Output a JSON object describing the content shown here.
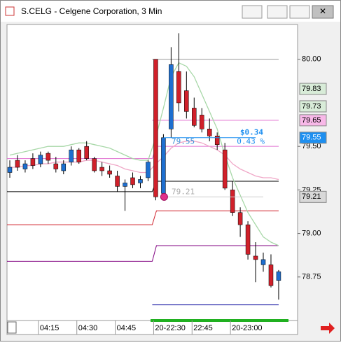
{
  "chart_data": {
    "type": "candlestick",
    "title": "S.CELG - Celgene Corporation, 3 Min",
    "categories": [
      null,
      null,
      null,
      null,
      "04:15",
      null,
      null,
      null,
      null,
      "04:30",
      null,
      null,
      null,
      null,
      "04:45",
      null,
      null,
      null,
      null,
      "20-22:30",
      null,
      null,
      null,
      null,
      "22:45",
      null,
      null,
      null,
      null,
      "20-23:00",
      null,
      null,
      null,
      null,
      null,
      null
    ],
    "open": [
      79.35,
      79.42,
      79.37,
      79.43,
      79.4,
      79.46,
      79.4,
      79.36,
      79.41,
      79.48,
      79.5,
      79.43,
      79.38,
      79.36,
      79.33,
      79.27,
      79.32,
      79.29,
      79.32,
      80.0,
      79.23,
      79.6,
      79.93,
      79.82,
      79.72,
      79.68,
      79.6,
      79.56,
      79.48,
      79.25,
      79.12,
      79.05,
      78.87,
      78.82,
      78.82,
      78.73
    ],
    "high": [
      79.42,
      79.45,
      79.42,
      79.46,
      79.47,
      79.47,
      79.44,
      79.42,
      79.5,
      79.49,
      79.53,
      79.44,
      79.41,
      79.39,
      79.36,
      79.31,
      79.35,
      79.33,
      79.42,
      80.0,
      79.57,
      80.07,
      80.15,
      79.93,
      79.78,
      79.72,
      79.66,
      79.58,
      79.52,
      79.3,
      79.15,
      79.07,
      78.95,
      78.89,
      78.88,
      78.79
    ],
    "low": [
      79.32,
      79.36,
      79.35,
      79.37,
      79.38,
      79.4,
      79.35,
      79.34,
      79.39,
      79.4,
      79.42,
      79.35,
      79.33,
      79.32,
      79.24,
      79.13,
      79.26,
      79.26,
      79.3,
      79.19,
      79.21,
      79.55,
      79.7,
      79.66,
      79.61,
      79.58,
      79.53,
      79.48,
      79.25,
      79.1,
      78.98,
      78.85,
      78.72,
      78.78,
      78.69,
      78.62
    ],
    "close": [
      79.38,
      79.38,
      79.4,
      79.39,
      79.45,
      79.42,
      79.37,
      79.4,
      79.48,
      79.41,
      79.43,
      79.36,
      79.36,
      79.34,
      79.27,
      79.29,
      79.28,
      79.31,
      79.41,
      79.21,
      79.55,
      79.97,
      79.75,
      79.7,
      79.62,
      79.6,
      79.56,
      79.51,
      79.26,
      79.12,
      79.05,
      78.88,
      78.85,
      78.85,
      78.7,
      78.78
    ],
    "up_color": "#1e6fd0",
    "down_color": "#d0202a",
    "series": [
      {
        "color": "#a8d8a8",
        "values": [
          79.45,
          79.46,
          79.47,
          79.48,
          79.49,
          79.5,
          79.5,
          79.5,
          79.51,
          79.52,
          79.52,
          79.51,
          79.5,
          79.49,
          79.47,
          79.45,
          79.43,
          79.42,
          79.42,
          79.55,
          79.72,
          79.9,
          79.98,
          79.96,
          79.9,
          79.8,
          79.7,
          79.6,
          79.45,
          79.32,
          79.22,
          79.12,
          79.05,
          78.98,
          78.95,
          78.93
        ]
      },
      {
        "color": "#f0a8c8",
        "values": [
          79.38,
          79.38,
          79.39,
          79.39,
          79.4,
          79.4,
          79.41,
          79.41,
          79.41,
          79.41,
          79.42,
          79.42,
          79.41,
          79.4,
          79.39,
          79.37,
          79.36,
          79.35,
          79.35,
          79.4,
          79.44,
          79.49,
          79.52,
          79.53,
          79.53,
          79.52,
          79.5,
          79.48,
          79.45,
          79.4,
          79.37,
          79.35,
          79.33,
          79.32,
          79.32,
          79.31
        ]
      }
    ],
    "levels": [
      {
        "color": "#999999",
        "left": null,
        "right": 80.0
      },
      {
        "color": "#e070d0",
        "left": null,
        "right": 79.65
      },
      {
        "color": "#e070d0",
        "left": 79.43,
        "right": 79.5
      },
      {
        "color": "#000000",
        "left": 79.24,
        "right": 79.3
      },
      {
        "color": "#d0202a",
        "left": 79.05,
        "right": 79.13
      },
      {
        "color": "#800080",
        "left": 78.84,
        "right": 78.93
      },
      {
        "color": "#1010a0",
        "left": null,
        "right": 78.59
      }
    ],
    "change": "$0.34",
    "change_pct": "0.43 %",
    "last": 79.55,
    "marker": 79.21,
    "price_labels": [
      {
        "value": 79.83,
        "color": "#d8ecd8",
        "text_color": "#000000"
      },
      {
        "value": 79.73,
        "color": "#d8ecd8",
        "text_color": "#000000"
      },
      {
        "value": 79.65,
        "color": "#f8b8e8",
        "text_color": "#000000"
      },
      {
        "value": 79.55,
        "color": "#1e8ff0",
        "text_color": "#ffffff"
      },
      {
        "value": 79.21,
        "color": "#d8d8d8",
        "text_color": "#000000"
      }
    ],
    "ylim": [
      78.5,
      80.2
    ],
    "yticks": [
      {
        "value": 80,
        "label": "80.00"
      },
      {
        "value": 79.5,
        "label": "79.50"
      },
      {
        "value": 79.25,
        "label": "79.25"
      },
      {
        "value": 79,
        "label": "79.00"
      },
      {
        "value": 78.75,
        "label": "78.75"
      }
    ]
  }
}
